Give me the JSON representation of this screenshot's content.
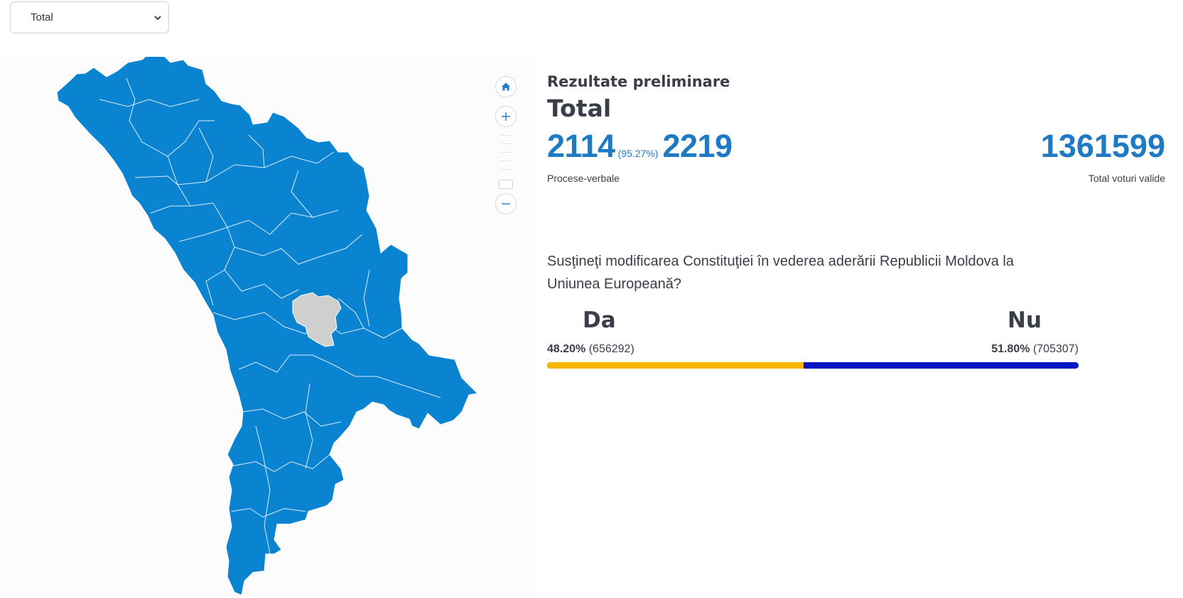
{
  "region_select": {
    "selected": "Total",
    "icon": "chevron-down-icon"
  },
  "map": {
    "fill_color": "#0a84d0",
    "highlight_color": "#cfcfcf",
    "border_color": "#ffffff",
    "controls": {
      "home_icon": "home-icon",
      "zoom_in_icon": "plus-icon",
      "zoom_out_icon": "minus-icon"
    }
  },
  "results": {
    "subtitle": "Rezultate preliminare",
    "title": "Total",
    "processed": "2114",
    "processed_pct": "(95.27%)",
    "total_reports": "2219",
    "reports_label": "Procese-verbale",
    "valid_votes": "1361599",
    "valid_votes_label": "Total voturi valide",
    "question": "Susţineţi modificarea Constituţiei în vederea aderării Republicii Moldova la Uniunea Europeană?",
    "options": [
      {
        "label": "Da",
        "pct": "48.20%",
        "votes": "(656292)",
        "share": 0.482,
        "color": "#f7b500"
      },
      {
        "label": "Nu",
        "pct": "51.80%",
        "votes": "(705307)",
        "share": 0.518,
        "color": "#0016c4"
      }
    ]
  }
}
